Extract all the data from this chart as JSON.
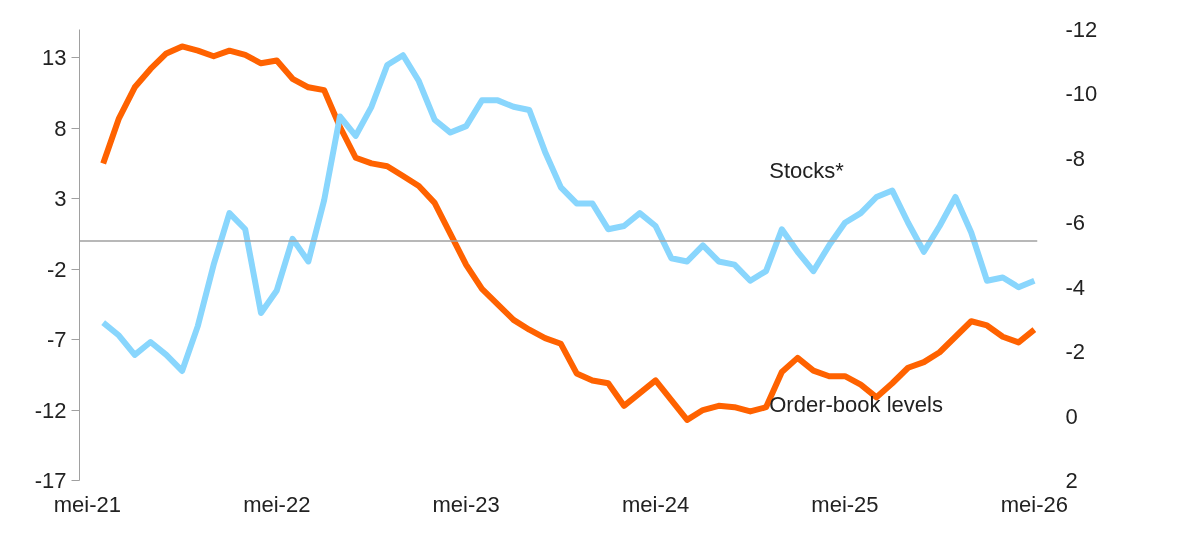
{
  "chart_data": {
    "type": "line",
    "categories": [
      "mei-21",
      null,
      null,
      null,
      null,
      null,
      null,
      null,
      null,
      null,
      null,
      null,
      "mei-22",
      null,
      null,
      null,
      null,
      null,
      null,
      null,
      null,
      null,
      null,
      null,
      "mei-23",
      null,
      null,
      null,
      null,
      null,
      null,
      null,
      null,
      null,
      null,
      null,
      "mei-24",
      null,
      null,
      null,
      null,
      null,
      null,
      null,
      null,
      null,
      null,
      null,
      "mei-25",
      null,
      null,
      null,
      null,
      null,
      null,
      null,
      null,
      null,
      null,
      null,
      "mei-26"
    ],
    "series": [
      {
        "name": "Order-book levels",
        "color": "#ff6200",
        "values": [
          null,
          5.5,
          8.7,
          10.9,
          12.2,
          13.3,
          13.8,
          13.5,
          13.1,
          13.5,
          13.2,
          12.6,
          12.8,
          11.5,
          10.9,
          10.7,
          8.1,
          5.9,
          5.5,
          5.3,
          4.6,
          3.9,
          2.7,
          0.5,
          -1.7,
          -3.4,
          -4.5,
          -5.6,
          -6.3,
          -6.9,
          -7.3,
          -9.4,
          -9.9,
          -10.1,
          -11.7,
          -10.8,
          -9.9,
          -11.3,
          -12.7,
          -12.0,
          -11.7,
          -11.8,
          -12.1,
          -11.8,
          -9.3,
          -8.3,
          -9.2,
          -9.6,
          -9.6,
          -10.2,
          -11.1,
          -10.1,
          -9.0,
          -8.6,
          -7.9,
          -6.8,
          -5.7,
          -6.0,
          -6.8,
          -7.2,
          -6.3
        ]
      },
      {
        "name": "Stocks*",
        "color": "#89d6fd",
        "axis": "y2",
        "values": [
          null,
          -2.9,
          -2.5,
          -1.9,
          -2.3,
          -1.9,
          -1.4,
          -2.8,
          -4.7,
          -6.3,
          -5.8,
          -3.2,
          -3.9,
          -5.5,
          -4.8,
          -6.7,
          -9.3,
          -8.7,
          -9.6,
          -10.9,
          -11.2,
          -10.4,
          -9.2,
          -8.8,
          -9.0,
          -9.8,
          -9.8,
          -9.6,
          -9.5,
          -8.2,
          -7.1,
          -6.6,
          -6.6,
          -5.8,
          -5.9,
          -6.3,
          -5.9,
          -4.9,
          -4.8,
          -5.3,
          -4.8,
          -4.7,
          -4.2,
          -4.5,
          -5.8,
          -5.1,
          -4.5,
          -5.3,
          -6.0,
          -6.3,
          -6.8,
          -7.0,
          -6.0,
          -5.1,
          -5.9,
          -6.8,
          -5.7,
          -4.2,
          -4.3,
          -4.0,
          -4.2
        ]
      }
    ],
    "ylim": [
      -17,
      15
    ],
    "yticks": [
      -17,
      -12,
      -7,
      -2,
      3,
      8,
      13
    ],
    "y2lim": [
      2,
      -12
    ],
    "y2ticks": [
      2,
      0,
      -2,
      -4,
      -6,
      -8,
      -10,
      -12
    ],
    "ref_lines": [
      {
        "axis": "y",
        "value": 0,
        "color": "#a0a0a0"
      }
    ],
    "grid": false,
    "marker": "none",
    "line_style": "solid"
  }
}
